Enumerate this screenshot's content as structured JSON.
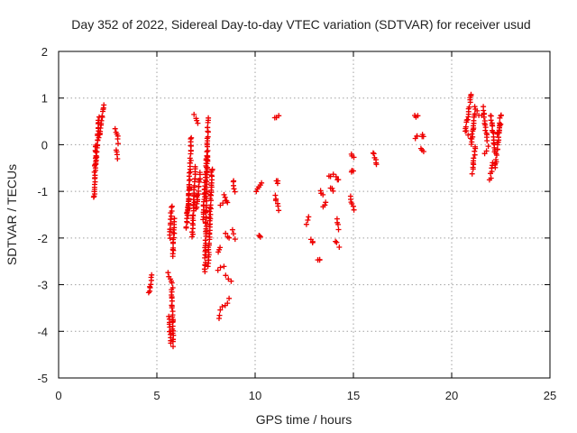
{
  "chart_data": {
    "type": "scatter",
    "title": "Day 352 of 2022, Sidereal Day-to-day VTEC variation (SDTVAR) for receiver usud",
    "xlabel": "GPS time / hours",
    "ylabel": "SDTVAR / TECUs",
    "xlim": [
      0,
      25
    ],
    "ylim": [
      -5,
      2
    ],
    "xticks": [
      0,
      5,
      10,
      15,
      20,
      25
    ],
    "yticks": [
      -5,
      -4,
      -3,
      -2,
      -1,
      0,
      1,
      2
    ],
    "grid": true,
    "marker": "+",
    "series_color": "#ee0000",
    "segments": [
      {
        "x0": 1.8,
        "x1": 1.9,
        "y0": -1.15,
        "y1": 0.0
      },
      {
        "x0": 1.9,
        "x1": 2.05,
        "y0": -0.5,
        "y1": 0.6
      },
      {
        "x0": 2.05,
        "x1": 2.3,
        "y0": 0.15,
        "y1": 0.85
      },
      {
        "x0": 2.9,
        "x1": 3.05,
        "y0": 0.35,
        "y1": 0.05
      },
      {
        "x0": 2.95,
        "x1": 3.0,
        "y0": -0.1,
        "y1": -0.28
      },
      {
        "x0": 4.6,
        "x1": 4.75,
        "y0": -3.2,
        "y1": -2.8
      },
      {
        "x0": 5.6,
        "x1": 5.7,
        "y0": -3.7,
        "y1": -4.25
      },
      {
        "x0": 5.65,
        "x1": 5.75,
        "y0": -2.0,
        "y1": -1.3
      },
      {
        "x0": 5.6,
        "x1": 5.8,
        "y0": -2.75,
        "y1": -3.05
      },
      {
        "x0": 5.75,
        "x1": 5.85,
        "y0": -3.1,
        "y1": -4.3
      },
      {
        "x0": 5.8,
        "x1": 5.9,
        "y0": -2.4,
        "y1": -1.6
      },
      {
        "x0": 6.5,
        "x1": 6.65,
        "y0": -1.8,
        "y1": -0.9
      },
      {
        "x0": 6.6,
        "x1": 6.75,
        "y0": -1.5,
        "y1": 0.15
      },
      {
        "x0": 6.8,
        "x1": 6.95,
        "y0": -2.0,
        "y1": -0.45
      },
      {
        "x0": 6.9,
        "x1": 7.1,
        "y0": 0.65,
        "y1": 0.45
      },
      {
        "x0": 7.0,
        "x1": 7.2,
        "y0": -1.4,
        "y1": -0.6
      },
      {
        "x0": 7.35,
        "x1": 7.55,
        "y0": -1.6,
        "y1": -0.25
      },
      {
        "x0": 7.45,
        "x1": 7.6,
        "y0": -2.7,
        "y1": 0.55
      },
      {
        "x0": 7.6,
        "x1": 7.8,
        "y0": -2.6,
        "y1": -0.5
      },
      {
        "x0": 8.1,
        "x1": 8.2,
        "y0": -2.3,
        "y1": -2.2
      },
      {
        "x0": 8.15,
        "x1": 8.3,
        "y0": -3.7,
        "y1": -3.5
      },
      {
        "x0": 8.1,
        "x1": 8.4,
        "y0": -2.7,
        "y1": -2.6
      },
      {
        "x0": 8.2,
        "x1": 8.5,
        "y0": -1.3,
        "y1": -1.2
      },
      {
        "x0": 8.4,
        "x1": 8.6,
        "y0": -1.05,
        "y1": -1.25
      },
      {
        "x0": 8.5,
        "x1": 8.7,
        "y0": -1.9,
        "y1": -2.0
      },
      {
        "x0": 8.5,
        "x1": 8.8,
        "y0": -2.8,
        "y1": -2.9
      },
      {
        "x0": 8.5,
        "x1": 8.7,
        "y0": -3.45,
        "y1": -3.3
      },
      {
        "x0": 8.9,
        "x1": 8.95,
        "y0": -0.75,
        "y1": -1.0
      },
      {
        "x0": 8.85,
        "x1": 8.95,
        "y0": -1.85,
        "y1": -2.0
      },
      {
        "x0": 10.05,
        "x1": 10.3,
        "y0": -1.0,
        "y1": -0.8
      },
      {
        "x0": 10.2,
        "x1": 10.25,
        "y0": -1.95,
        "y1": -2.0
      },
      {
        "x0": 11.0,
        "x1": 11.2,
        "y0": 0.55,
        "y1": 0.65
      },
      {
        "x0": 11.1,
        "x1": 11.15,
        "y0": -0.8,
        "y1": -0.8
      },
      {
        "x0": 11.0,
        "x1": 11.2,
        "y0": -1.1,
        "y1": -1.4
      },
      {
        "x0": 12.6,
        "x1": 12.75,
        "y0": -1.7,
        "y1": -1.55
      },
      {
        "x0": 12.85,
        "x1": 12.95,
        "y0": -2.05,
        "y1": -2.1
      },
      {
        "x0": 13.2,
        "x1": 13.3,
        "y0": -2.47,
        "y1": -2.47
      },
      {
        "x0": 13.3,
        "x1": 13.45,
        "y0": -1.0,
        "y1": -1.05
      },
      {
        "x0": 13.45,
        "x1": 13.6,
        "y0": -1.35,
        "y1": -1.25
      },
      {
        "x0": 13.75,
        "x1": 13.95,
        "y0": -0.65,
        "y1": -0.65
      },
      {
        "x0": 13.85,
        "x1": 13.95,
        "y0": -0.9,
        "y1": -1.0
      },
      {
        "x0": 14.1,
        "x1": 14.25,
        "y0": -0.7,
        "y1": -0.75
      },
      {
        "x0": 14.15,
        "x1": 14.25,
        "y0": -1.6,
        "y1": -1.8
      },
      {
        "x0": 14.1,
        "x1": 14.25,
        "y0": -2.05,
        "y1": -2.2
      },
      {
        "x0": 14.9,
        "x1": 15.0,
        "y0": -0.2,
        "y1": -0.25
      },
      {
        "x0": 14.9,
        "x1": 15.0,
        "y0": -0.6,
        "y1": -0.55
      },
      {
        "x0": 14.85,
        "x1": 15.0,
        "y0": -1.1,
        "y1": -1.4
      },
      {
        "x0": 16.0,
        "x1": 16.2,
        "y0": -0.15,
        "y1": -0.45
      },
      {
        "x0": 18.1,
        "x1": 18.25,
        "y0": 0.6,
        "y1": 0.6
      },
      {
        "x0": 18.15,
        "x1": 18.25,
        "y0": 0.15,
        "y1": 0.2
      },
      {
        "x0": 18.45,
        "x1": 18.55,
        "y0": -0.1,
        "y1": -0.15
      },
      {
        "x0": 18.5,
        "x1": 18.55,
        "y0": 0.2,
        "y1": 0.2
      },
      {
        "x0": 20.7,
        "x1": 21.0,
        "y0": 0.3,
        "y1": 1.1
      },
      {
        "x0": 20.75,
        "x1": 20.95,
        "y0": 0.3,
        "y1": 0.15
      },
      {
        "x0": 21.0,
        "x1": 21.2,
        "y0": 0.0,
        "y1": 0.8
      },
      {
        "x0": 21.05,
        "x1": 21.2,
        "y0": -0.6,
        "y1": -0.05
      },
      {
        "x0": 21.3,
        "x1": 21.5,
        "y0": 0.7,
        "y1": 0.6
      },
      {
        "x0": 21.6,
        "x1": 21.8,
        "y0": 0.8,
        "y1": 0.1
      },
      {
        "x0": 21.65,
        "x1": 21.85,
        "y0": -0.2,
        "y1": -0.05
      },
      {
        "x0": 22.0,
        "x1": 22.2,
        "y0": 0.65,
        "y1": -0.15
      },
      {
        "x0": 21.95,
        "x1": 22.1,
        "y0": -0.75,
        "y1": -0.4
      },
      {
        "x0": 22.2,
        "x1": 22.5,
        "y0": -0.5,
        "y1": 0.65
      },
      {
        "x0": 22.3,
        "x1": 22.5,
        "y0": 0.2,
        "y1": 0.45
      }
    ]
  }
}
